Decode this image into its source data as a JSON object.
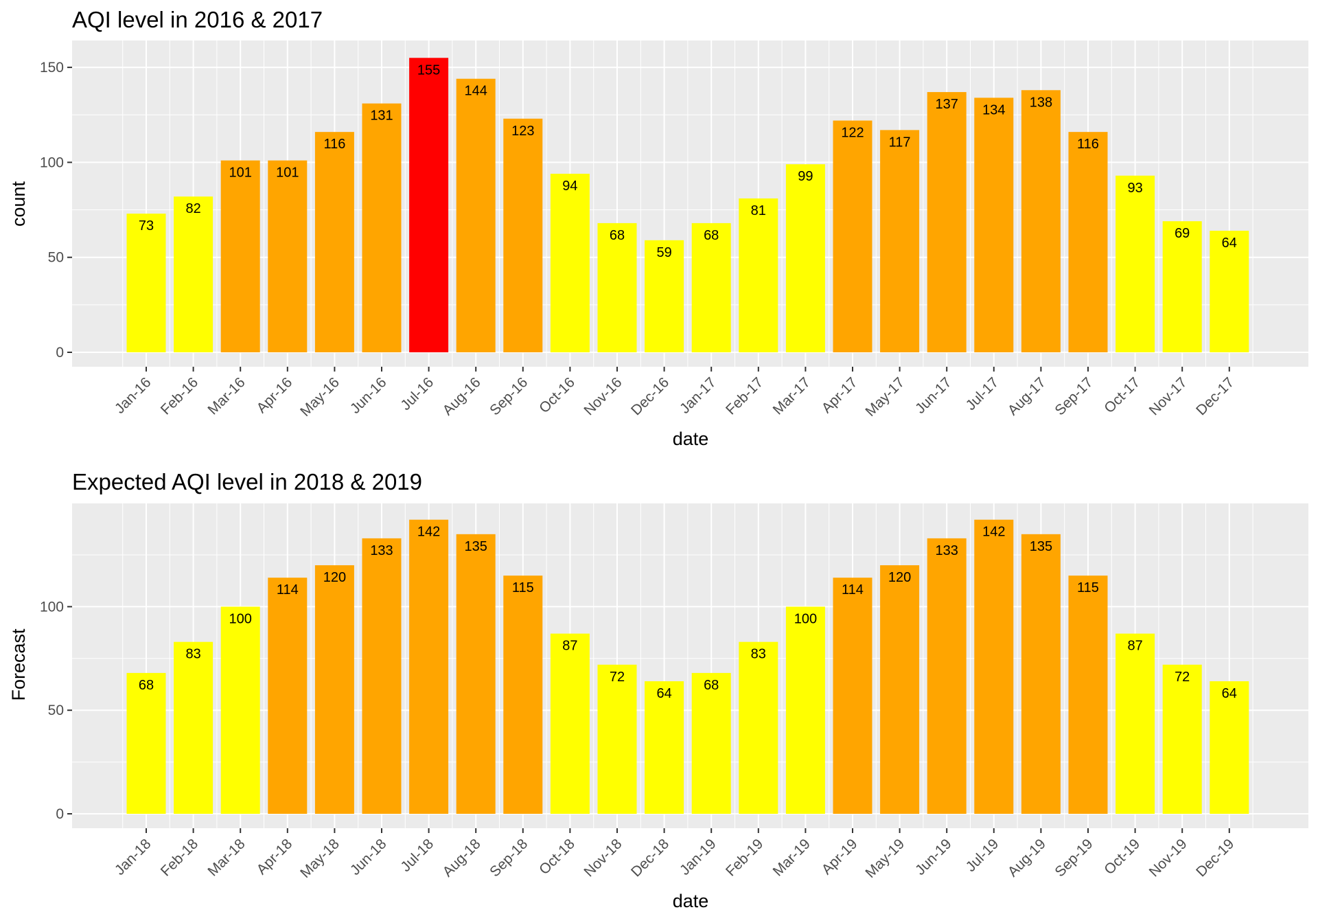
{
  "colors": {
    "red": "#ff0000",
    "orange": "#ffa500",
    "yellow": "#ffff00",
    "panel": "#ebebeb",
    "grid": "#ffffff"
  },
  "chart_data": [
    {
      "type": "bar",
      "title": "AQI level in 2016 & 2017",
      "xlabel": "date",
      "ylabel": "count",
      "ylim": [
        0,
        160
      ],
      "yticks": [
        0,
        50,
        100,
        150
      ],
      "grid": true,
      "categories": [
        "Jan-16",
        "Feb-16",
        "Mar-16",
        "Apr-16",
        "May-16",
        "Jun-16",
        "Jul-16",
        "Aug-16",
        "Sep-16",
        "Oct-16",
        "Nov-16",
        "Dec-16",
        "Jan-17",
        "Feb-17",
        "Mar-17",
        "Apr-17",
        "May-17",
        "Jun-17",
        "Jul-17",
        "Aug-17",
        "Sep-17",
        "Oct-17",
        "Nov-17",
        "Dec-17"
      ],
      "values": [
        73,
        82,
        101,
        101,
        116,
        131,
        155,
        144,
        123,
        94,
        68,
        59,
        68,
        81,
        99,
        122,
        117,
        137,
        134,
        138,
        116,
        93,
        69,
        64
      ],
      "bar_colors": [
        "yellow",
        "yellow",
        "orange",
        "orange",
        "orange",
        "orange",
        "red",
        "orange",
        "orange",
        "yellow",
        "yellow",
        "yellow",
        "yellow",
        "yellow",
        "yellow",
        "orange",
        "orange",
        "orange",
        "orange",
        "orange",
        "orange",
        "yellow",
        "yellow",
        "yellow"
      ]
    },
    {
      "type": "bar",
      "title": "Expected AQI level in 2018 & 2019",
      "xlabel": "date",
      "ylabel": "Forecast",
      "ylim": [
        0,
        150
      ],
      "yticks": [
        0,
        50,
        100
      ],
      "grid": true,
      "categories": [
        "Jan-18",
        "Feb-18",
        "Mar-18",
        "Apr-18",
        "May-18",
        "Jun-18",
        "Jul-18",
        "Aug-18",
        "Sep-18",
        "Oct-18",
        "Nov-18",
        "Dec-18",
        "Jan-19",
        "Feb-19",
        "Mar-19",
        "Apr-19",
        "May-19",
        "Jun-19",
        "Jul-19",
        "Aug-19",
        "Sep-19",
        "Oct-19",
        "Nov-19",
        "Dec-19"
      ],
      "values": [
        68,
        83,
        100,
        114,
        120,
        133,
        142,
        135,
        115,
        87,
        72,
        64,
        68,
        83,
        100,
        114,
        120,
        133,
        142,
        135,
        115,
        87,
        72,
        64
      ],
      "bar_colors": [
        "yellow",
        "yellow",
        "yellow",
        "orange",
        "orange",
        "orange",
        "orange",
        "orange",
        "orange",
        "yellow",
        "yellow",
        "yellow",
        "yellow",
        "yellow",
        "yellow",
        "orange",
        "orange",
        "orange",
        "orange",
        "orange",
        "orange",
        "yellow",
        "yellow",
        "yellow"
      ]
    }
  ]
}
